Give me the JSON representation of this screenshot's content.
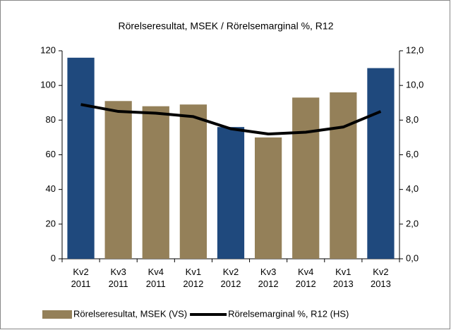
{
  "chart_data": {
    "type": "bar",
    "title": "Rörelseresultat, MSEK / Rörelsemarginal %, R12",
    "categories": [
      "Kv2 2011",
      "Kv3 2011",
      "Kv4 2011",
      "Kv1 2012",
      "Kv2 2012",
      "Kv3 2012",
      "Kv4 2012",
      "Kv1 2013",
      "Kv2 2013"
    ],
    "series": [
      {
        "name": "Rörelseresultat, MSEK (VS)",
        "type": "bar",
        "color": "#948059",
        "colors": [
          "#1f497d",
          "#948059",
          "#948059",
          "#948059",
          "#1f497d",
          "#948059",
          "#948059",
          "#948059",
          "#1f497d"
        ],
        "values": [
          116,
          91,
          88,
          89,
          76,
          70,
          93,
          96,
          110
        ]
      },
      {
        "name": "Rörelsemarginal %, R12 (HS)",
        "type": "line",
        "axis": "y2",
        "color": "#000000",
        "values": [
          8.9,
          8.5,
          8.4,
          8.2,
          7.5,
          7.2,
          7.3,
          7.6,
          8.5
        ]
      }
    ],
    "ylim": [
      0,
      120
    ],
    "yticks": [
      0,
      20,
      40,
      60,
      80,
      100,
      120
    ],
    "y2lim": [
      0,
      12
    ],
    "y2ticks": [
      {
        "value": 0,
        "label": "0,0"
      },
      {
        "value": 2,
        "label": "2,0"
      },
      {
        "value": 4,
        "label": "4,0"
      },
      {
        "value": 6,
        "label": "6,0"
      },
      {
        "value": 8,
        "label": "8,0"
      },
      {
        "value": 10,
        "label": "10,0"
      },
      {
        "value": 12,
        "label": "12,0"
      }
    ],
    "legend": "bottom"
  }
}
